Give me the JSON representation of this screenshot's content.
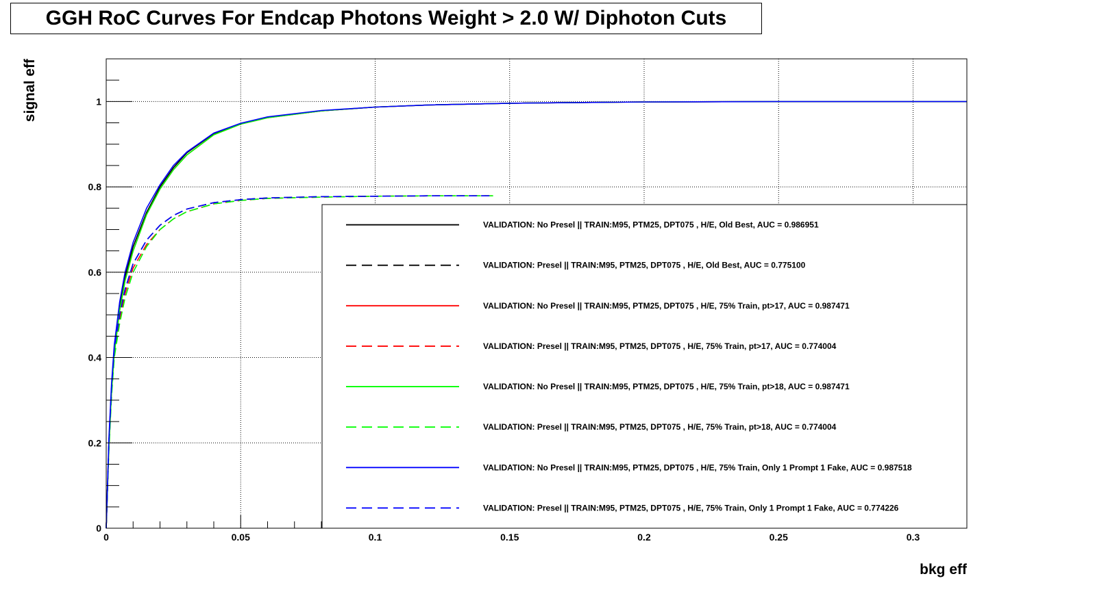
{
  "chart_data": {
    "type": "line",
    "title": "GGH RoC Curves For Endcap Photons Weight > 2.0 W/ Diphoton Cuts",
    "xlabel": "bkg eff",
    "ylabel": "signal eff",
    "xlim": [
      0,
      0.32
    ],
    "ylim": [
      0,
      1.1
    ],
    "x_ticks": [
      {
        "value": 0,
        "label": "0"
      },
      {
        "value": 0.05,
        "label": "0.05"
      },
      {
        "value": 0.1,
        "label": "0.1"
      },
      {
        "value": 0.15,
        "label": "0.15"
      },
      {
        "value": 0.2,
        "label": "0.2"
      },
      {
        "value": 0.25,
        "label": "0.25"
      },
      {
        "value": 0.3,
        "label": "0.3"
      }
    ],
    "y_ticks": [
      {
        "value": 0,
        "label": "0"
      },
      {
        "value": 0.2,
        "label": "0.2"
      },
      {
        "value": 0.4,
        "label": "0.4"
      },
      {
        "value": 0.6,
        "label": "0.6"
      },
      {
        "value": 0.8,
        "label": "0.8"
      },
      {
        "value": 1,
        "label": "1"
      }
    ],
    "grid": true,
    "legend_position": "lower-right",
    "series": [
      {
        "name": "VALIDATION: No Presel || TRAIN:M95, PTM25, DPT075 , H/E, Old Best, AUC = 0.986951",
        "color": "#000000",
        "dashed": false,
        "x": [
          0,
          0.001,
          0.002,
          0.003,
          0.005,
          0.007,
          0.01,
          0.015,
          0.02,
          0.025,
          0.03,
          0.04,
          0.05,
          0.06,
          0.08,
          0.1,
          0.12,
          0.15,
          0.2,
          0.25,
          0.32
        ],
        "y": [
          0,
          0.2,
          0.33,
          0.42,
          0.52,
          0.59,
          0.66,
          0.74,
          0.8,
          0.845,
          0.88,
          0.925,
          0.948,
          0.963,
          0.978,
          0.987,
          0.992,
          0.996,
          0.999,
          1.0,
          1.0
        ]
      },
      {
        "name": "VALIDATION: Presel || TRAIN:M95, PTM25, DPT075 , H/E, Old Best, AUC = 0.775100",
        "color": "#000000",
        "dashed": true,
        "x": [
          0,
          0.001,
          0.002,
          0.003,
          0.005,
          0.007,
          0.01,
          0.015,
          0.02,
          0.025,
          0.03,
          0.04,
          0.05,
          0.06,
          0.08,
          0.1,
          0.12,
          0.144
        ],
        "y": [
          0,
          0.2,
          0.33,
          0.42,
          0.5,
          0.56,
          0.62,
          0.675,
          0.71,
          0.733,
          0.748,
          0.763,
          0.77,
          0.774,
          0.777,
          0.778,
          0.779,
          0.779
        ]
      },
      {
        "name": "VALIDATION: No Presel || TRAIN:M95, PTM25, DPT075 , H/E, 75% Train, pt>17, AUC = 0.987471",
        "color": "#ff0000",
        "dashed": false,
        "x": [
          0,
          0.001,
          0.002,
          0.003,
          0.005,
          0.007,
          0.01,
          0.015,
          0.02,
          0.025,
          0.03,
          0.04,
          0.05,
          0.06,
          0.08,
          0.1,
          0.12,
          0.15,
          0.2,
          0.25,
          0.32
        ],
        "y": [
          0,
          0.19,
          0.32,
          0.41,
          0.51,
          0.58,
          0.65,
          0.735,
          0.795,
          0.84,
          0.875,
          0.922,
          0.947,
          0.962,
          0.978,
          0.987,
          0.992,
          0.996,
          0.999,
          1.0,
          1.0
        ]
      },
      {
        "name": "VALIDATION: Presel || TRAIN:M95, PTM25, DPT075 , H/E, 75% Train, pt>17, AUC = 0.774004",
        "color": "#ff0000",
        "dashed": true,
        "x": [
          0,
          0.001,
          0.002,
          0.003,
          0.005,
          0.007,
          0.01,
          0.015,
          0.02,
          0.025,
          0.03,
          0.04,
          0.05,
          0.06,
          0.08,
          0.1,
          0.12,
          0.144
        ],
        "y": [
          0,
          0.19,
          0.32,
          0.41,
          0.49,
          0.55,
          0.61,
          0.665,
          0.7,
          0.725,
          0.742,
          0.76,
          0.768,
          0.773,
          0.776,
          0.778,
          0.779,
          0.779
        ]
      },
      {
        "name": "VALIDATION: No Presel || TRAIN:M95, PTM25, DPT075 , H/E, 75% Train, pt>18, AUC = 0.987471",
        "color": "#00ff00",
        "dashed": false,
        "x": [
          0,
          0.001,
          0.002,
          0.003,
          0.005,
          0.007,
          0.01,
          0.015,
          0.02,
          0.025,
          0.03,
          0.04,
          0.05,
          0.06,
          0.08,
          0.1,
          0.12,
          0.15,
          0.2,
          0.25,
          0.32
        ],
        "y": [
          0,
          0.19,
          0.32,
          0.41,
          0.51,
          0.58,
          0.65,
          0.735,
          0.795,
          0.84,
          0.875,
          0.922,
          0.947,
          0.962,
          0.978,
          0.987,
          0.992,
          0.996,
          0.999,
          1.0,
          1.0
        ]
      },
      {
        "name": "VALIDATION: Presel || TRAIN:M95, PTM25, DPT075 , H/E, 75% Train, pt>18, AUC = 0.774004",
        "color": "#00ff00",
        "dashed": true,
        "x": [
          0,
          0.001,
          0.002,
          0.003,
          0.005,
          0.007,
          0.01,
          0.015,
          0.02,
          0.025,
          0.03,
          0.04,
          0.05,
          0.06,
          0.08,
          0.1,
          0.12,
          0.144
        ],
        "y": [
          0,
          0.18,
          0.31,
          0.4,
          0.48,
          0.54,
          0.6,
          0.66,
          0.7,
          0.725,
          0.742,
          0.76,
          0.768,
          0.773,
          0.776,
          0.778,
          0.779,
          0.779
        ]
      },
      {
        "name": "VALIDATION: No Presel || TRAIN:M95, PTM25, DPT075 , H/E, 75% Train, Only 1 Prompt 1 Fake, AUC = 0.987518",
        "color": "#0000ff",
        "dashed": false,
        "x": [
          0,
          0.001,
          0.002,
          0.003,
          0.005,
          0.007,
          0.01,
          0.015,
          0.02,
          0.025,
          0.03,
          0.04,
          0.05,
          0.06,
          0.08,
          0.1,
          0.12,
          0.15,
          0.2,
          0.25,
          0.32
        ],
        "y": [
          0,
          0.21,
          0.34,
          0.43,
          0.53,
          0.6,
          0.67,
          0.75,
          0.805,
          0.85,
          0.882,
          0.926,
          0.949,
          0.964,
          0.979,
          0.987,
          0.992,
          0.996,
          0.999,
          1.0,
          1.0
        ]
      },
      {
        "name": "VALIDATION: Presel || TRAIN:M95, PTM25, DPT075 , H/E, 75% Train, Only 1 Prompt 1 Fake, AUC = 0.774226",
        "color": "#0000ff",
        "dashed": true,
        "x": [
          0,
          0.001,
          0.002,
          0.003,
          0.005,
          0.007,
          0.01,
          0.015,
          0.02,
          0.025,
          0.03,
          0.04,
          0.05,
          0.06,
          0.08,
          0.1,
          0.12,
          0.144
        ],
        "y": [
          0,
          0.2,
          0.33,
          0.42,
          0.5,
          0.56,
          0.62,
          0.675,
          0.71,
          0.733,
          0.748,
          0.763,
          0.77,
          0.774,
          0.777,
          0.778,
          0.779,
          0.779
        ]
      }
    ]
  }
}
